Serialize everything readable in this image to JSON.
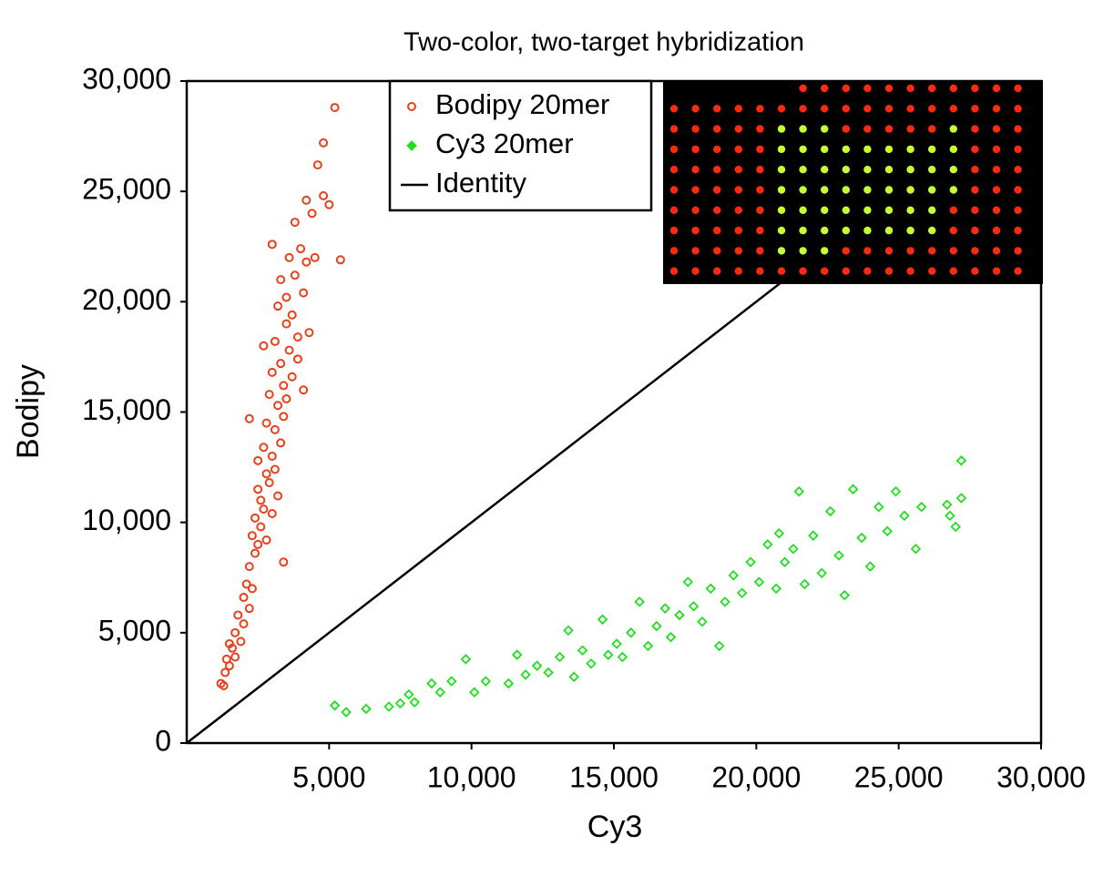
{
  "chart_data": {
    "type": "scatter",
    "title": "Two-color, two-target hybridization",
    "x_label": "Cy3",
    "y_label": "Bodipy",
    "xlim": [
      0,
      30000
    ],
    "ylim": [
      0,
      30000
    ],
    "xticks": [
      {
        "value": 5000,
        "label": "5,000"
      },
      {
        "value": 10000,
        "label": "10,000"
      },
      {
        "value": 15000,
        "label": "15,000"
      },
      {
        "value": 20000,
        "label": "20,000"
      },
      {
        "value": 25000,
        "label": "25,000"
      },
      {
        "value": 30000,
        "label": "30,000"
      }
    ],
    "yticks": [
      0,
      {
        "value": 5000,
        "label": "5,000"
      },
      {
        "value": 10000,
        "label": "10,000"
      },
      {
        "value": 15000,
        "label": "15,000"
      },
      {
        "value": 20000,
        "label": "20,000"
      },
      {
        "value": 25000,
        "label": "25,000"
      },
      {
        "value": 30000,
        "label": "30,000"
      }
    ],
    "legend": "top-center",
    "series": [
      {
        "name": "Bodipy 20mer",
        "color": "#e8401c",
        "marker": "circle",
        "x": [
          1200,
          1300,
          1350,
          1400,
          1500,
          1600,
          1700,
          1700,
          1800,
          1900,
          2000,
          2000,
          2100,
          2200,
          2200,
          2300,
          2300,
          2400,
          2400,
          2500,
          2500,
          2500,
          2600,
          2600,
          2700,
          2700,
          2800,
          2800,
          2800,
          2900,
          2900,
          3000,
          3000,
          3000,
          3100,
          3100,
          3100,
          3200,
          3200,
          3200,
          3300,
          3300,
          3300,
          3400,
          3400,
          3400,
          3500,
          3500,
          3500,
          3600,
          3600,
          3700,
          3700,
          3800,
          3800,
          3900,
          3900,
          4000,
          4100,
          4100,
          4200,
          4200,
          4300,
          4400,
          4500,
          4600,
          4800,
          4800,
          5000,
          5200,
          5400,
          3000,
          2200,
          1500,
          2700
        ],
        "values": [
          2700,
          2600,
          3200,
          3800,
          3500,
          4300,
          5000,
          3900,
          5800,
          4600,
          5400,
          6600,
          7200,
          6100,
          8000,
          9400,
          7000,
          8600,
          10200,
          9000,
          11500,
          12800,
          9800,
          11000,
          13400,
          10600,
          12200,
          14500,
          9200,
          15800,
          11800,
          13000,
          16800,
          10400,
          14200,
          18200,
          12400,
          15300,
          19800,
          11200,
          17200,
          13600,
          21000,
          16200,
          14800,
          8200,
          19000,
          20200,
          15600,
          17800,
          22000,
          16600,
          19400,
          21200,
          23600,
          18400,
          17400,
          22400,
          20400,
          16000,
          24600,
          21800,
          18600,
          24000,
          22000,
          26200,
          24800,
          27200,
          24400,
          28800,
          21900,
          22600,
          14700,
          4500,
          18000
        ]
      },
      {
        "name": "Cy3 20mer",
        "color": "#22dd22",
        "marker": "diamond",
        "x": [
          5200,
          5600,
          6300,
          7100,
          7500,
          7800,
          8000,
          8600,
          8900,
          9300,
          9800,
          10100,
          10500,
          11300,
          11600,
          11900,
          12300,
          12700,
          13100,
          13400,
          13600,
          13900,
          14200,
          14600,
          14800,
          15100,
          15300,
          15600,
          15900,
          16200,
          16500,
          16800,
          17000,
          17300,
          17600,
          17800,
          18100,
          18400,
          18700,
          18900,
          19200,
          19500,
          19800,
          20100,
          20400,
          20700,
          21000,
          21300,
          21500,
          21700,
          22000,
          22300,
          22600,
          22900,
          23100,
          23400,
          23700,
          24000,
          24300,
          24600,
          24900,
          25200,
          25600,
          25800,
          26700,
          27000,
          27200,
          27200,
          26800,
          20800
        ],
        "values": [
          1700,
          1400,
          1550,
          1650,
          1800,
          2200,
          1850,
          2700,
          2300,
          2800,
          3800,
          2300,
          2800,
          2700,
          4000,
          3100,
          3500,
          3200,
          3900,
          5100,
          3000,
          4200,
          3600,
          5600,
          4000,
          4500,
          3900,
          5000,
          6400,
          4400,
          5300,
          6100,
          4800,
          5800,
          7300,
          6200,
          5500,
          7000,
          4400,
          6400,
          7600,
          6800,
          8200,
          7300,
          9000,
          7000,
          8200,
          8800,
          11400,
          7200,
          9400,
          7700,
          10500,
          8500,
          6700,
          11500,
          9300,
          8000,
          10700,
          9600,
          11400,
          10300,
          8800,
          10700,
          10800,
          9800,
          12800,
          11100,
          10300,
          9500
        ]
      },
      {
        "name": "Identity",
        "color": "#000000",
        "marker": "line",
        "x": [
          0,
          30000
        ],
        "values": [
          0,
          30000
        ]
      }
    ]
  }
}
